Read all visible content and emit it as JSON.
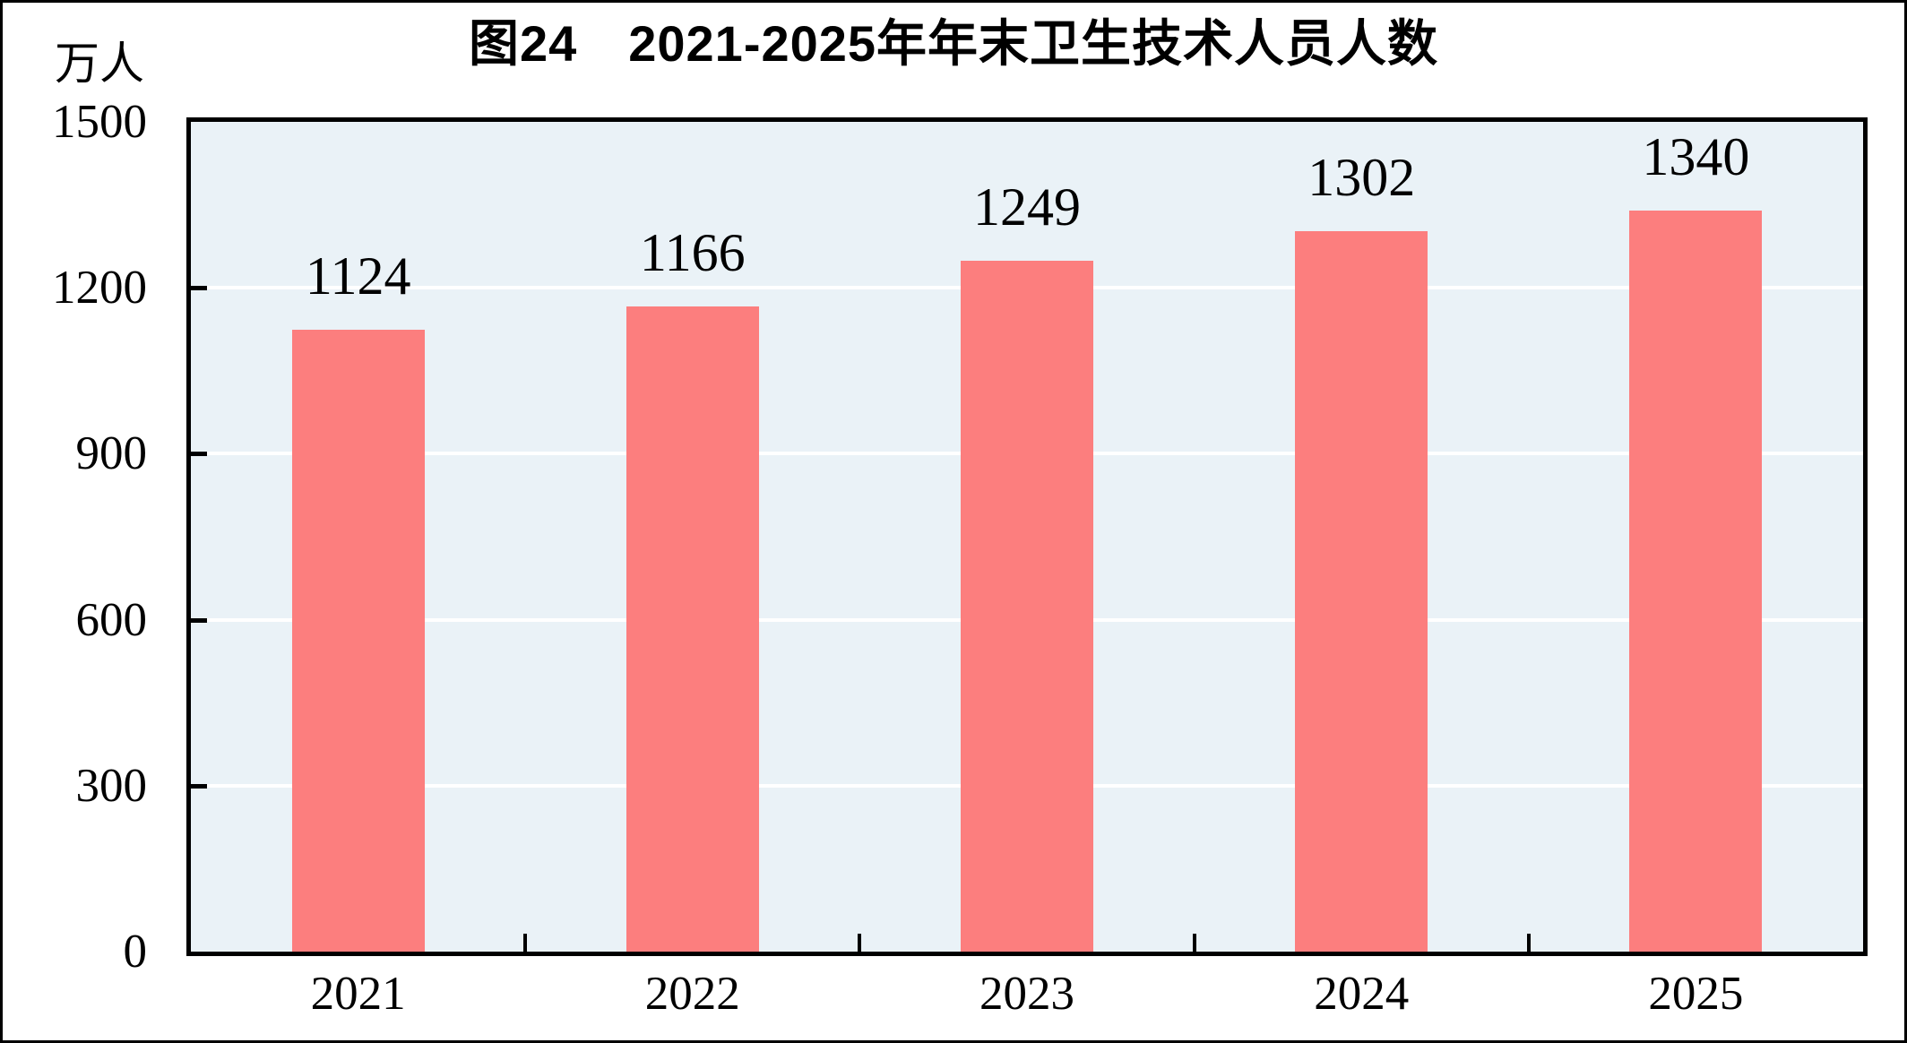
{
  "chart_data": {
    "type": "bar",
    "title": "图24　2021-2025年年末卫生技术人员人数",
    "unit_label": "万人",
    "categories": [
      "2021",
      "2022",
      "2023",
      "2024",
      "2025"
    ],
    "values": [
      1124,
      1166,
      1249,
      1302,
      1340
    ],
    "xlabel": "",
    "ylabel": "万人",
    "ylim": [
      0,
      1500
    ],
    "yticks": [
      0,
      300,
      600,
      900,
      1200,
      1500
    ],
    "grid": "horizontal-white-lines",
    "legend_position": "none",
    "bar_color": "#FC7E7E",
    "plot_bg_color": "#EAF2F7",
    "grid_color": "#FFFFFF",
    "axis_color": "#000000",
    "text_color": "#000000"
  }
}
